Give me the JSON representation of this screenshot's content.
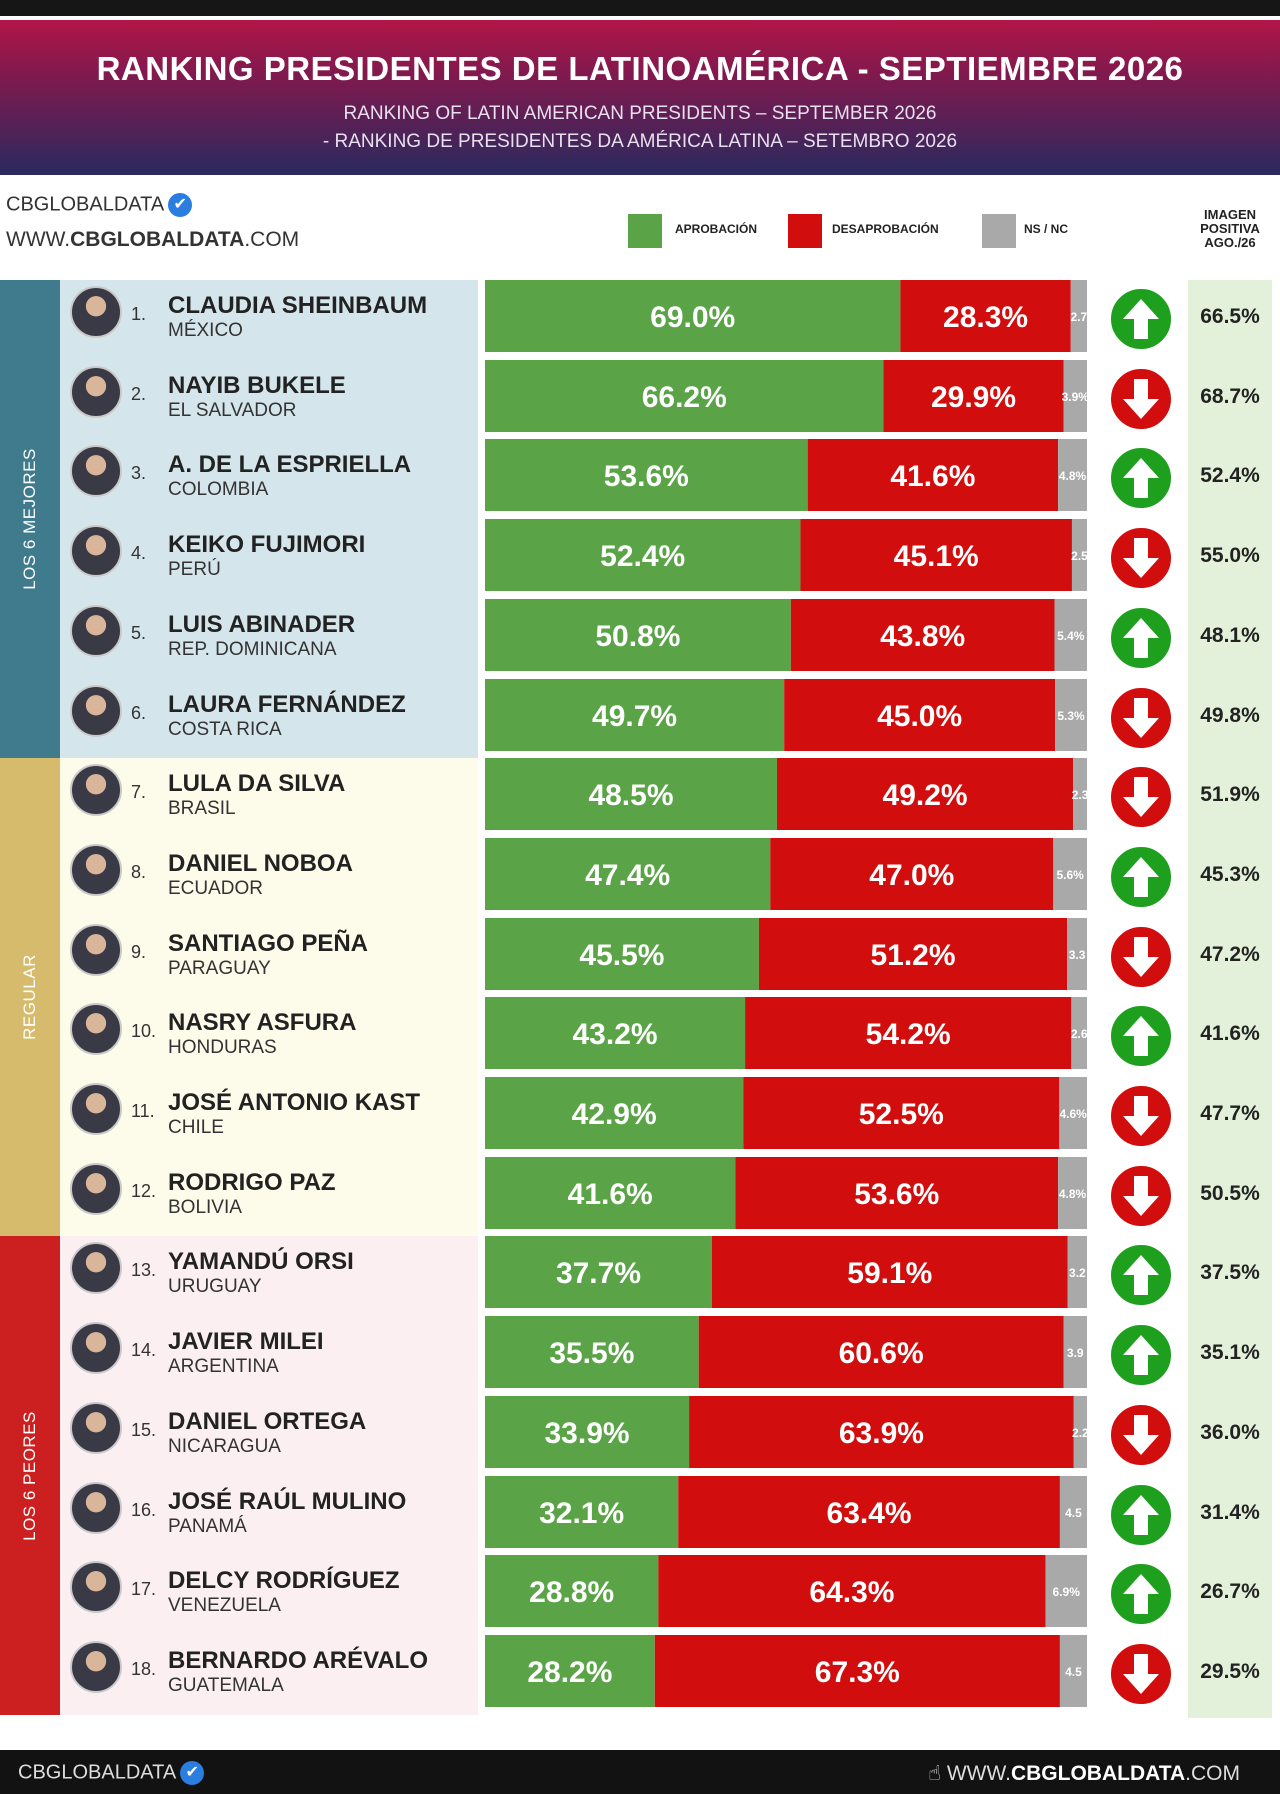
{
  "header": {
    "title": "RANKING PRESIDENTES DE LATINOAMÉRICA - SEPTIEMBRE 2026",
    "subtitle_en": "RANKING OF LATIN AMERICAN PRESIDENTS – SEPTEMBER 2026",
    "subtitle_pt": "- RANKING DE PRESIDENTES DA AMÉRICA LATINA – SETEMBRO 2026"
  },
  "brand": {
    "name": "CBGLOBALDATA",
    "url_prefix": "WWW.",
    "url_bold": "CBGLOBALDATA",
    "url_suffix": ".COM",
    "verified_icon": "✔"
  },
  "legend": {
    "approve": "APROBACIÓN",
    "disapprove": "DESAPROBACIÓN",
    "nsnc": "NS / NC"
  },
  "imagen_header": [
    "IMAGEN",
    "POSITIVA",
    "AGO./26"
  ],
  "groups": [
    {
      "label": "LOS 6 MEJORES",
      "color": "#3f7b8c",
      "bg": "#d5e5ec"
    },
    {
      "label": "REGULAR",
      "color": "#d7bb6c",
      "bg": "#fdfbe9"
    },
    {
      "label": "LOS 6 PEORES",
      "color": "#cc1f1f",
      "bg": "#fbeff1"
    }
  ],
  "colors": {
    "approve": "#5aa447",
    "disapprove": "#d10d0d",
    "nsnc": "#a9a9a9",
    "arrow_up": "#1ea01e",
    "arrow_down": "#d10d0d"
  },
  "chart_data": {
    "type": "bar",
    "stacked": true,
    "orientation": "horizontal",
    "series_names": [
      "APROBACIÓN",
      "DESAPROBACIÓN",
      "NS / NC"
    ],
    "rows": [
      {
        "rank": "1.",
        "name": "CLAUDIA SHEINBAUM",
        "country": "MÉXICO",
        "approve": 69.0,
        "approve_label": "69.0%",
        "disapprove": 28.3,
        "disapprove_label": "28.3%",
        "nsnc": 2.7,
        "nsnc_label": "2.7",
        "trend": "up",
        "imagen": "66.5%"
      },
      {
        "rank": "2.",
        "name": "NAYIB BUKELE",
        "country": "EL SALVADOR",
        "approve": 66.2,
        "approve_label": "66.2%",
        "disapprove": 29.9,
        "disapprove_label": "29.9%",
        "nsnc": 3.9,
        "nsnc_label": "3.9%",
        "trend": "down",
        "imagen": "68.7%"
      },
      {
        "rank": "3.",
        "name": "A. DE LA ESPRIELLA",
        "country": "COLOMBIA",
        "approve": 53.6,
        "approve_label": "53.6%",
        "disapprove": 41.6,
        "disapprove_label": "41.6%",
        "nsnc": 4.8,
        "nsnc_label": "4.8%",
        "trend": "up",
        "imagen": "52.4%"
      },
      {
        "rank": "4.",
        "name": "KEIKO FUJIMORI",
        "country": "PERÚ",
        "approve": 52.4,
        "approve_label": "52.4%",
        "disapprove": 45.1,
        "disapprove_label": "45.1%",
        "nsnc": 2.5,
        "nsnc_label": "2.5",
        "trend": "down",
        "imagen": "55.0%"
      },
      {
        "rank": "5.",
        "name": "LUIS ABINADER",
        "country": "REP. DOMINICANA",
        "approve": 50.8,
        "approve_label": "50.8%",
        "disapprove": 43.8,
        "disapprove_label": "43.8%",
        "nsnc": 5.4,
        "nsnc_label": "5.4%",
        "trend": "up",
        "imagen": "48.1%"
      },
      {
        "rank": "6.",
        "name": "LAURA FERNÁNDEZ",
        "country": "COSTA RICA",
        "approve": 49.7,
        "approve_label": "49.7%",
        "disapprove": 45.0,
        "disapprove_label": "45.0%",
        "nsnc": 5.3,
        "nsnc_label": "5.3%",
        "trend": "down",
        "imagen": "49.8%"
      },
      {
        "rank": "7.",
        "name": "LULA DA SILVA",
        "country": "BRASIL",
        "approve": 48.5,
        "approve_label": "48.5%",
        "disapprove": 49.2,
        "disapprove_label": "49.2%",
        "nsnc": 2.3,
        "nsnc_label": "2.3",
        "trend": "down",
        "imagen": "51.9%"
      },
      {
        "rank": "8.",
        "name": "DANIEL NOBOA",
        "country": "ECUADOR",
        "approve": 47.4,
        "approve_label": "47.4%",
        "disapprove": 47.0,
        "disapprove_label": "47.0%",
        "nsnc": 5.6,
        "nsnc_label": "5.6%",
        "trend": "up",
        "imagen": "45.3%"
      },
      {
        "rank": "9.",
        "name": "SANTIAGO PEÑA",
        "country": "PARAGUAY",
        "approve": 45.5,
        "approve_label": "45.5%",
        "disapprove": 51.2,
        "disapprove_label": "51.2%",
        "nsnc": 3.3,
        "nsnc_label": "3.3",
        "trend": "down",
        "imagen": "47.2%"
      },
      {
        "rank": "10.",
        "name": "NASRY ASFURA",
        "country": "HONDURAS",
        "approve": 43.2,
        "approve_label": "43.2%",
        "disapprove": 54.2,
        "disapprove_label": "54.2%",
        "nsnc": 2.6,
        "nsnc_label": "2.6",
        "trend": "up",
        "imagen": "41.6%"
      },
      {
        "rank": "11.",
        "name": "JOSÉ ANTONIO KAST",
        "country": "CHILE",
        "approve": 42.9,
        "approve_label": "42.9%",
        "disapprove": 52.5,
        "disapprove_label": "52.5%",
        "nsnc": 4.6,
        "nsnc_label": "4.6%",
        "trend": "down",
        "imagen": "47.7%"
      },
      {
        "rank": "12.",
        "name": "RODRIGO PAZ",
        "country": "BOLIVIA",
        "approve": 41.6,
        "approve_label": "41.6%",
        "disapprove": 53.6,
        "disapprove_label": "53.6%",
        "nsnc": 4.8,
        "nsnc_label": "4.8%",
        "trend": "down",
        "imagen": "50.5%"
      },
      {
        "rank": "13.",
        "name": "YAMANDÚ ORSI",
        "country": "URUGUAY",
        "approve": 37.7,
        "approve_label": "37.7%",
        "disapprove": 59.1,
        "disapprove_label": "59.1%",
        "nsnc": 3.2,
        "nsnc_label": "3.2",
        "trend": "up",
        "imagen": "37.5%"
      },
      {
        "rank": "14.",
        "name": "JAVIER MILEI",
        "country": "ARGENTINA",
        "approve": 35.5,
        "approve_label": "35.5%",
        "disapprove": 60.6,
        "disapprove_label": "60.6%",
        "nsnc": 3.9,
        "nsnc_label": "3.9",
        "trend": "up",
        "imagen": "35.1%"
      },
      {
        "rank": "15.",
        "name": "DANIEL ORTEGA",
        "country": "NICARAGUA",
        "approve": 33.9,
        "approve_label": "33.9%",
        "disapprove": 63.9,
        "disapprove_label": "63.9%",
        "nsnc": 2.2,
        "nsnc_label": "2.2",
        "trend": "down",
        "imagen": "36.0%"
      },
      {
        "rank": "16.",
        "name": "JOSÉ RAÚL MULINO",
        "country": "PANAMÁ",
        "approve": 32.1,
        "approve_label": "32.1%",
        "disapprove": 63.4,
        "disapprove_label": "63.4%",
        "nsnc": 4.5,
        "nsnc_label": "4.5",
        "trend": "up",
        "imagen": "31.4%"
      },
      {
        "rank": "17.",
        "name": "DELCY RODRÍGUEZ",
        "country": "VENEZUELA",
        "approve": 28.8,
        "approve_label": "28.8%",
        "disapprove": 64.3,
        "disapprove_label": "64.3%",
        "nsnc": 6.9,
        "nsnc_label": "6.9%",
        "trend": "up",
        "imagen": "26.7%"
      },
      {
        "rank": "18.",
        "name": "BERNARDO ARÉVALO",
        "country": "GUATEMALA",
        "approve": 28.2,
        "approve_label": "28.2%",
        "disapprove": 67.3,
        "disapprove_label": "67.3%",
        "nsnc": 4.5,
        "nsnc_label": "4.5",
        "trend": "down",
        "imagen": "29.5%"
      }
    ]
  },
  "footer": {
    "left": "CBGLOBALDATA",
    "right_prefix": "WWW.",
    "right_bold": "CBGLOBALDATA",
    "right_suffix": ".COM",
    "cursor_icon": "☝"
  }
}
